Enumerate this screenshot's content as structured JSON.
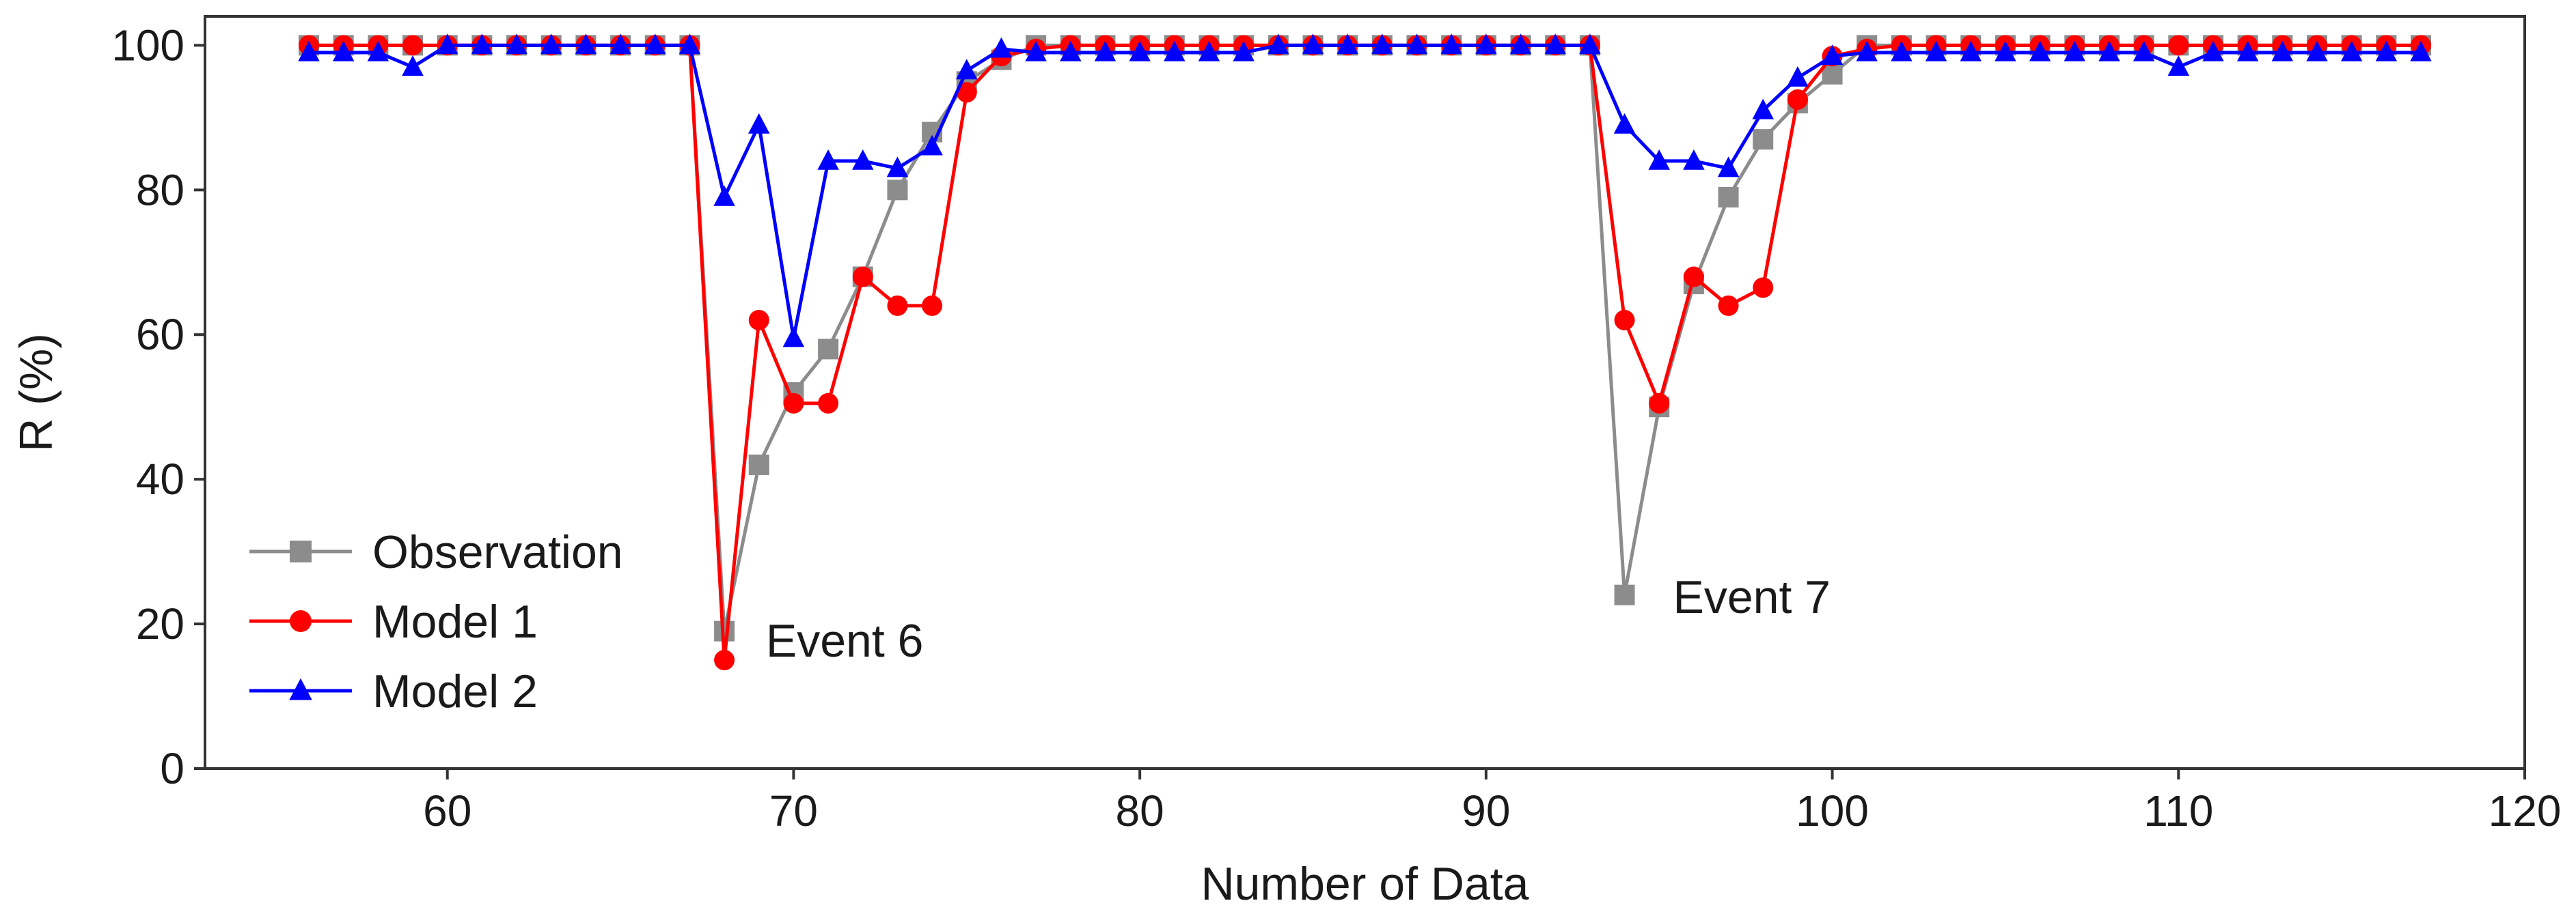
{
  "chart_data": {
    "type": "line",
    "title": "",
    "xlabel": "Number of Data",
    "ylabel": "R (%)",
    "xlim": [
      53,
      120
    ],
    "ylim": [
      0,
      104
    ],
    "xticks": [
      60,
      70,
      80,
      90,
      100,
      110,
      120
    ],
    "yticks": [
      0,
      20,
      40,
      60,
      80,
      100
    ],
    "x": [
      56,
      57,
      58,
      59,
      60,
      61,
      62,
      63,
      64,
      65,
      66,
      67,
      68,
      69,
      70,
      71,
      72,
      73,
      74,
      75,
      76,
      77,
      78,
      79,
      80,
      81,
      82,
      83,
      84,
      85,
      86,
      87,
      88,
      89,
      90,
      91,
      92,
      93,
      94,
      95,
      96,
      97,
      98,
      99,
      100,
      101,
      102,
      103,
      104,
      105,
      106,
      107,
      108,
      109,
      110,
      111,
      112,
      113,
      114,
      115,
      116,
      117
    ],
    "series": [
      {
        "name": "Observation",
        "color": "#8c8c8c",
        "marker": "square",
        "values": [
          100,
          100,
          100,
          100,
          100,
          100,
          100,
          100,
          100,
          100,
          100,
          100,
          19,
          42,
          52,
          58,
          68,
          80,
          88,
          95,
          98,
          100,
          100,
          100,
          100,
          100,
          100,
          100,
          100,
          100,
          100,
          100,
          100,
          100,
          100,
          100,
          100,
          100,
          24,
          50,
          67,
          79,
          87,
          92,
          96,
          100,
          100,
          100,
          100,
          100,
          100,
          100,
          100,
          100,
          100,
          100,
          100,
          100,
          100,
          100,
          100,
          100
        ]
      },
      {
        "name": "Model 1",
        "color": "#ff0000",
        "marker": "circle",
        "values": [
          100,
          100,
          100,
          100,
          100,
          100,
          100,
          100,
          100,
          100,
          100,
          100,
          15,
          62,
          50.5,
          50.5,
          68,
          64,
          64,
          93.5,
          98.5,
          99.5,
          100,
          100,
          100,
          100,
          100,
          100,
          100,
          100,
          100,
          100,
          100,
          100,
          100,
          100,
          100,
          100,
          62,
          50.5,
          68,
          64,
          66.5,
          92.5,
          98.5,
          99.5,
          100,
          100,
          100,
          100,
          100,
          100,
          100,
          100,
          100,
          100,
          100,
          100,
          100,
          100,
          100,
          100
        ]
      },
      {
        "name": "Model 2",
        "color": "#0000ff",
        "marker": "triangle",
        "values": [
          99,
          99,
          99,
          97,
          100,
          100,
          100,
          100,
          100,
          100,
          100,
          100,
          79,
          89,
          59.5,
          84,
          84,
          83,
          86,
          96.5,
          99.5,
          99,
          99,
          99,
          99,
          99,
          99,
          99,
          100,
          100,
          100,
          100,
          100,
          100,
          100,
          100,
          100,
          100,
          89,
          84,
          84,
          83,
          91,
          95.5,
          98.5,
          99,
          99,
          99,
          99,
          99,
          99,
          99,
          99,
          99,
          97,
          99,
          99,
          99,
          99,
          99,
          99,
          99
        ]
      }
    ],
    "annotations": [
      {
        "text": "Event 6",
        "x": 69.2,
        "y": 15.5
      },
      {
        "text": "Event 7",
        "x": 95.4,
        "y": 21.5
      }
    ],
    "legend": {
      "position": "lower-left"
    },
    "grid": false
  }
}
